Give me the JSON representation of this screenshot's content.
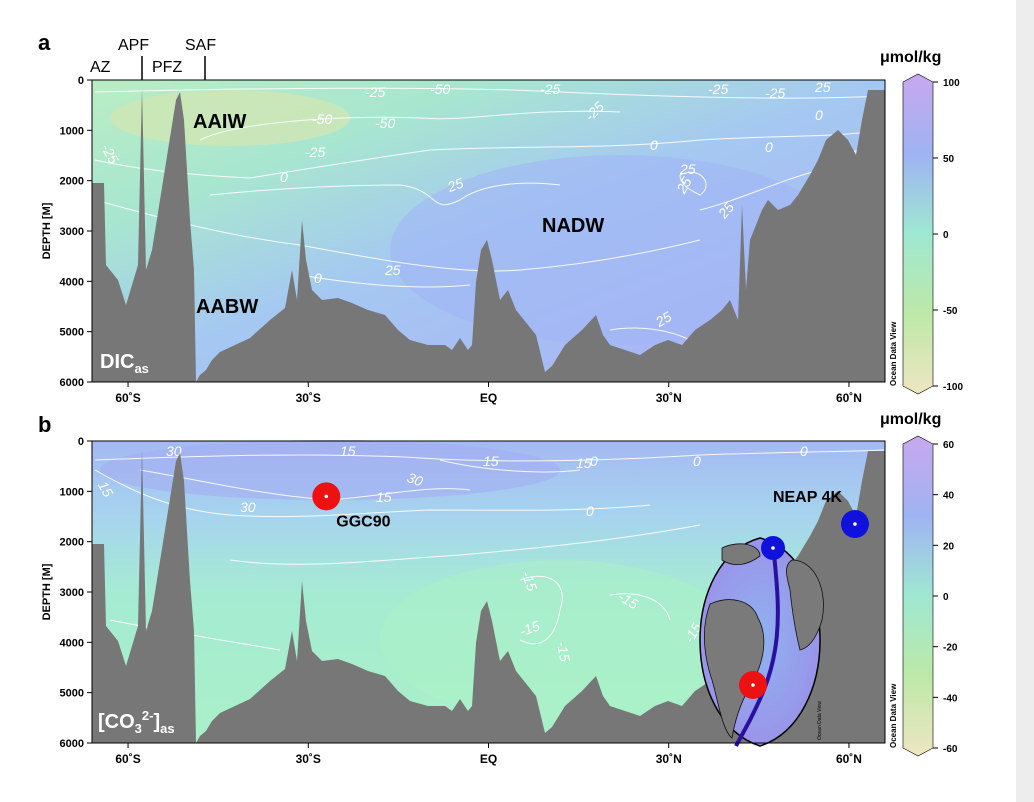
{
  "chart_data": [
    {
      "panel": "a",
      "type": "heatmap",
      "variable_label": "DIC",
      "variable_subscript": "as",
      "ylabel": "DEPTH [M]",
      "y_ticks": [
        "0",
        "1000",
        "2000",
        "3000",
        "4000",
        "5000",
        "6000"
      ],
      "ylim": [
        0,
        6000
      ],
      "x_ticks": [
        "60˚S",
        "30˚S",
        "EQ",
        "30˚N",
        "60˚N"
      ],
      "x_tick_lat": [
        -60,
        -30,
        0,
        30,
        60
      ],
      "xlim": [
        -66,
        66
      ],
      "colorbar": {
        "title": "μmol/kg",
        "ticks": [
          "100",
          "50",
          "0",
          "-50",
          "-100"
        ],
        "range": [
          -100,
          100
        ]
      },
      "fronts": [
        "APF",
        "SAF",
        "AZ",
        "PFZ"
      ],
      "water_masses": [
        "AAIW",
        "NADW",
        "AABW"
      ],
      "contour_labels": [
        "-25",
        "-50",
        "-50",
        "-50",
        "-25",
        "-25",
        "-25",
        "25",
        "-25",
        "0",
        "25",
        "-25",
        "-25",
        "0",
        "0",
        "0",
        "25",
        "25",
        "25",
        "25",
        "0",
        "25",
        "25"
      ]
    },
    {
      "panel": "b",
      "type": "heatmap",
      "variable_label": "[CO",
      "variable_sub_3": "3",
      "variable_sup": "2-",
      "variable_close": "]",
      "variable_subscript": "as",
      "ylabel": "DEPTH [M]",
      "y_ticks": [
        "0",
        "1000",
        "2000",
        "3000",
        "4000",
        "5000",
        "6000"
      ],
      "ylim": [
        0,
        6000
      ],
      "x_ticks": [
        "60˚S",
        "30˚S",
        "EQ",
        "30˚N",
        "60˚N"
      ],
      "x_tick_lat": [
        -60,
        -30,
        0,
        30,
        60
      ],
      "xlim": [
        -66,
        66
      ],
      "colorbar": {
        "title": "μmol/kg",
        "ticks": [
          "60",
          "40",
          "20",
          "0",
          "-20",
          "-40",
          "-60"
        ],
        "range": [
          -60,
          60
        ]
      },
      "sites": [
        {
          "name": "GGC90",
          "lat": -27,
          "depth": 1100,
          "color": "#ee1111"
        },
        {
          "name": "NEAP 4K",
          "lat": 61,
          "depth": 1650,
          "color": "#1111dd"
        }
      ],
      "contour_labels": [
        "30",
        "15",
        "30",
        "30",
        "15",
        "15",
        "15",
        "15",
        "0",
        "0",
        "0",
        "0",
        "-15",
        "-15",
        "-15",
        "-15",
        "-15",
        "15"
      ]
    }
  ],
  "watermark": "Ocean Data View"
}
